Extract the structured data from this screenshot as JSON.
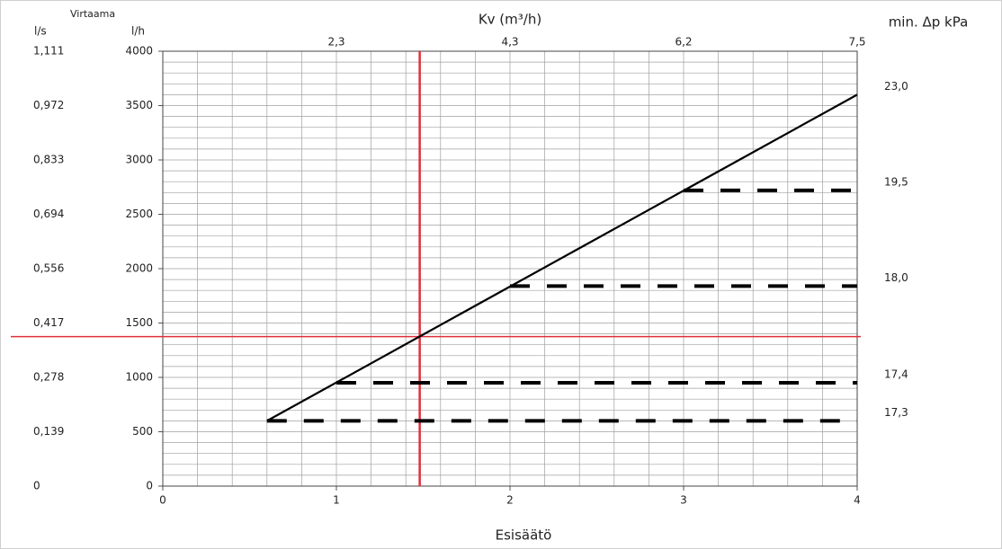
{
  "chart_data": {
    "type": "line",
    "side_label": "Virtaama",
    "y2_label": "l/s",
    "y_label": "l/h",
    "top_label": "Kv (m³/h)",
    "right_label": "min. Δp kPa",
    "x_label": "Esisäätö",
    "xlim": [
      0,
      4
    ],
    "xticks": [
      0,
      1,
      2,
      3,
      4
    ],
    "ylim": [
      0,
      4000
    ],
    "yticks": [
      0,
      500,
      1000,
      1500,
      2000,
      2500,
      3000,
      3500,
      4000
    ],
    "y2lim": [
      0,
      1.111
    ],
    "y2ticks": [
      0,
      {
        "value": 0.139,
        "label": "0,139"
      },
      {
        "value": 0.278,
        "label": "0,278"
      },
      {
        "value": 0.417,
        "label": "0,417"
      },
      {
        "value": 0.556,
        "label": "0,556"
      },
      {
        "value": 0.694,
        "label": "0,694"
      },
      {
        "value": 0.833,
        "label": "0,833"
      },
      {
        "value": 0.972,
        "label": "0,972"
      },
      {
        "value": 1.111,
        "label": "1,111"
      }
    ],
    "top_ticks": {
      "x": [
        1,
        2,
        3,
        4
      ],
      "labels": [
        "2,3",
        "4,3",
        "6,2",
        "7,5"
      ]
    },
    "grid": {
      "x_step": 0.2,
      "y_step": 100,
      "color": "#a0a0a0"
    },
    "lines": [
      {
        "x": [
          0.6,
          4
        ],
        "y": [
          600,
          3600
        ],
        "dash": false,
        "dp": "23,0",
        "color": "#000000"
      },
      {
        "x": [
          3,
          4
        ],
        "y": [
          2720,
          2720
        ],
        "dash": true,
        "dp": "19,5",
        "color": "#000000"
      },
      {
        "x": [
          2,
          4
        ],
        "y": [
          1840,
          1840
        ],
        "dash": true,
        "dp": "18,0",
        "color": "#000000"
      },
      {
        "x": [
          1,
          4
        ],
        "y": [
          950,
          950
        ],
        "dash": true,
        "dp": "17,4",
        "color": "#000000"
      },
      {
        "x": [
          0.6,
          4
        ],
        "y": [
          600,
          600
        ],
        "dash": true,
        "dp": "17,3",
        "color": "#000000"
      }
    ],
    "reference": {
      "x": 1.48,
      "y": 1375,
      "color": "#e0303a"
    }
  }
}
